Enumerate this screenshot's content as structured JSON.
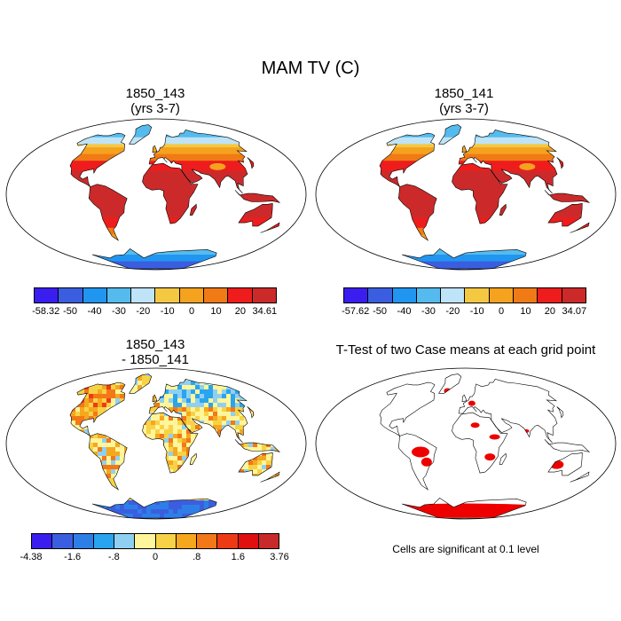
{
  "title": "MAM TV (C)",
  "panels": [
    {
      "id": "p1",
      "title_line1": "1850_143",
      "title_line2": "(yrs 3-7)",
      "mode": "abs"
    },
    {
      "id": "p2",
      "title_line1": "1850_141",
      "title_line2": "(yrs 3-7)",
      "mode": "abs"
    },
    {
      "id": "p3",
      "title_line1": "1850_143",
      "title_line2": "- 1850_141",
      "mode": "diff"
    },
    {
      "id": "p4",
      "title_line1": "T-Test of two Case means at each grid point",
      "title_line2": "",
      "mode": "ttest"
    }
  ],
  "colorbars": [
    {
      "id": "cb1",
      "colors": [
        "#3a1ef0",
        "#3b5ee0",
        "#2196f0",
        "#55bbee",
        "#bfe3f7",
        "#f5c842",
        "#f5a21e",
        "#f07a15",
        "#ee1c1c",
        "#cc2a2a"
      ],
      "labels": [
        "-58.32",
        "-50",
        "-40",
        "-30",
        "-20",
        "-10",
        "0",
        "10",
        "20",
        "34.61"
      ]
    },
    {
      "id": "cb2",
      "colors": [
        "#3a1ef0",
        "#3b5ee0",
        "#2196f0",
        "#55bbee",
        "#bfe3f7",
        "#f5c842",
        "#f5a21e",
        "#f07a15",
        "#ee1c1c",
        "#cc2a2a"
      ],
      "labels": [
        "-57.62",
        "-50",
        "-40",
        "-30",
        "-20",
        "-10",
        "0",
        "10",
        "20",
        "34.07"
      ]
    },
    {
      "id": "cb3",
      "colors": [
        "#3a1ef0",
        "#3b5ee0",
        "#2e7ee8",
        "#2aa4ee",
        "#8fd0f2",
        "#fff59a",
        "#f8d246",
        "#f5a81e",
        "#f27818",
        "#ee3a14",
        "#e01010",
        "#c82a2a"
      ],
      "labels": [
        "-4.38",
        "-1.6",
        "-.8",
        "0",
        ".8",
        "1.6",
        "3.76"
      ]
    }
  ],
  "footnote": "Cells are significant at 0.1 level",
  "chart_data": [
    {
      "type": "heatmap",
      "title": "1850_143 (yrs 3-7)",
      "units": "C",
      "season": "MAM",
      "range": [
        -58.32,
        34.61
      ],
      "levels": [
        -50,
        -40,
        -30,
        -20,
        -10,
        0,
        10,
        20
      ]
    },
    {
      "type": "heatmap",
      "title": "1850_141 (yrs 3-7)",
      "units": "C",
      "season": "MAM",
      "range": [
        -57.62,
        34.07
      ],
      "levels": [
        -50,
        -40,
        -30,
        -20,
        -10,
        0,
        10,
        20
      ]
    },
    {
      "type": "heatmap",
      "title": "1850_143 - 1850_141",
      "units": "C",
      "season": "MAM",
      "range": [
        -4.38,
        3.76
      ],
      "levels": [
        -1.6,
        -0.8,
        0,
        0.8,
        1.6
      ]
    },
    {
      "type": "heatmap",
      "title": "T-Test of two Case means at each grid point",
      "significance_level": 0.1
    }
  ]
}
